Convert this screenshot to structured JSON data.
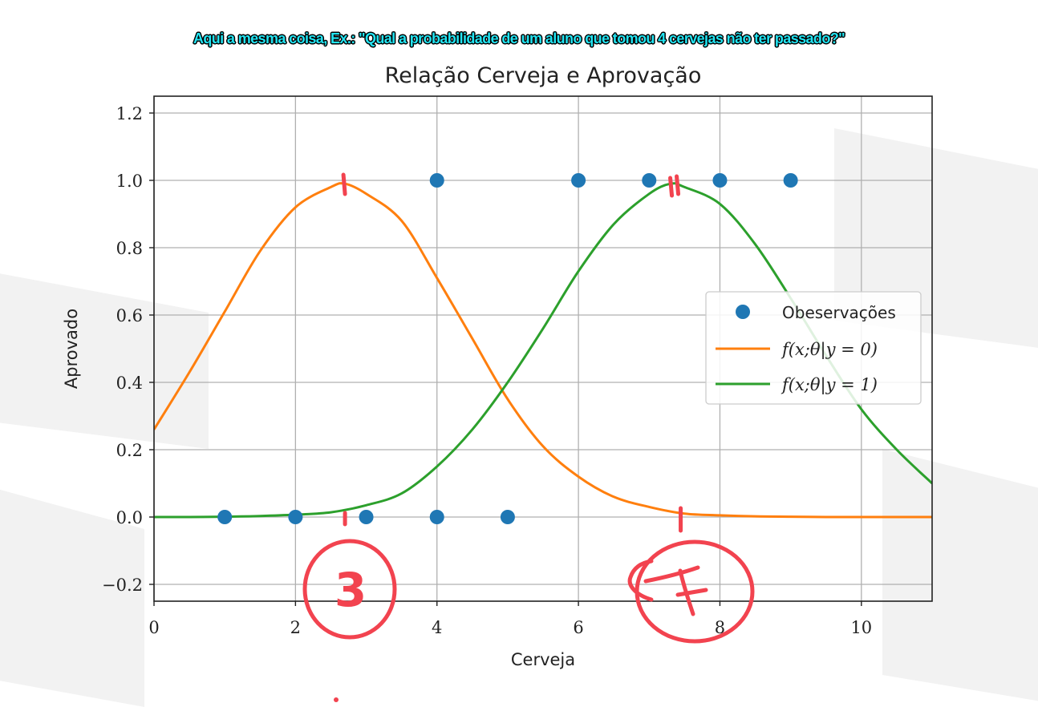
{
  "caption": "Aqui a mesma coisa, Ex.: \"Qual a probabilidade de um aluno que tomou 4 cervejas não ter passado?\"",
  "chart_data": {
    "type": "line",
    "title": "Relação Cerveja e Aprovação",
    "xlabel": "Cerveja",
    "ylabel": "Aprovado",
    "xlim": [
      0,
      11
    ],
    "ylim": [
      -0.25,
      1.25
    ],
    "xticks": [
      0,
      2,
      4,
      6,
      8,
      10
    ],
    "xtick_labels": [
      "0",
      "2",
      "4",
      "6",
      "8",
      "10"
    ],
    "yticks": [
      -0.2,
      0.0,
      0.2,
      0.4,
      0.6,
      0.8,
      1.0,
      1.2
    ],
    "ytick_labels": [
      "−0.2",
      "0.0",
      "0.2",
      "0.4",
      "0.6",
      "0.8",
      "1.0",
      "1.2"
    ],
    "grid": true,
    "legend_position": "center-right",
    "observations": {
      "name": "Obeservações",
      "color": "#1f77b4",
      "points": [
        {
          "x": 1,
          "y": 0
        },
        {
          "x": 2,
          "y": 0
        },
        {
          "x": 3,
          "y": 0
        },
        {
          "x": 4,
          "y": 0
        },
        {
          "x": 5,
          "y": 0
        },
        {
          "x": 4,
          "y": 1
        },
        {
          "x": 6,
          "y": 1
        },
        {
          "x": 7,
          "y": 1
        },
        {
          "x": 8,
          "y": 1
        },
        {
          "x": 9,
          "y": 1
        }
      ]
    },
    "series": [
      {
        "name": "f(x;θ|y = 0)",
        "color": "#ff7f0e",
        "x": [
          0,
          0.5,
          1,
          1.5,
          2,
          2.5,
          2.7,
          3,
          3.5,
          4,
          4.5,
          5,
          5.5,
          6,
          6.5,
          7,
          7.5,
          8,
          8.5,
          9,
          9.5,
          10,
          10.5,
          11
        ],
        "y": [
          0.26,
          0.43,
          0.61,
          0.79,
          0.92,
          0.98,
          0.99,
          0.96,
          0.88,
          0.71,
          0.53,
          0.35,
          0.21,
          0.12,
          0.06,
          0.03,
          0.01,
          0.005,
          0.002,
          0.001,
          0.0,
          0.0,
          0.0,
          0.0
        ]
      },
      {
        "name": "f(x;θ|y = 1)",
        "color": "#2ca02c",
        "x": [
          0,
          0.5,
          1,
          1.5,
          2,
          2.5,
          3,
          3.5,
          4,
          4.5,
          5,
          5.5,
          6,
          6.5,
          7,
          7.3,
          7.5,
          8,
          8.5,
          9,
          9.5,
          10,
          10.5,
          11
        ],
        "y": [
          0.0,
          0.0,
          0.001,
          0.003,
          0.007,
          0.014,
          0.035,
          0.07,
          0.15,
          0.26,
          0.4,
          0.56,
          0.73,
          0.87,
          0.96,
          0.99,
          0.98,
          0.93,
          0.81,
          0.65,
          0.48,
          0.32,
          0.2,
          0.1
        ]
      }
    ],
    "annotations": [
      {
        "label": "3",
        "x": 2.7
      },
      {
        "label": "7",
        "x": 7.4
      }
    ]
  }
}
